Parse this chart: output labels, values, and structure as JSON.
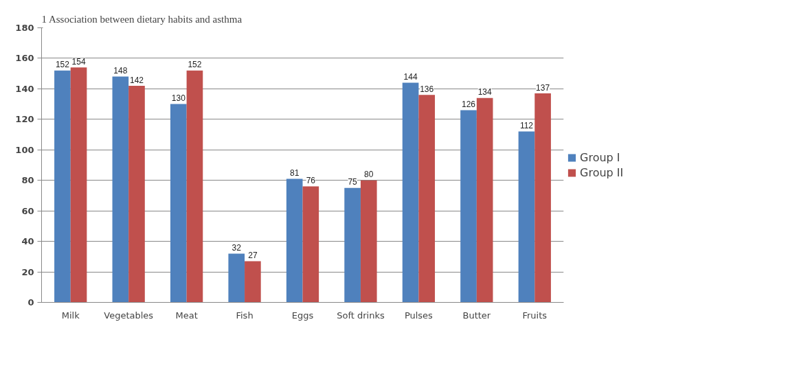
{
  "chart_data": {
    "type": "bar",
    "title": "1 Association between dietary habits and asthma",
    "categories": [
      "Milk",
      "Vegetables",
      "Meat",
      "Fish",
      "Eggs",
      "Soft drinks",
      "Pulses",
      "Butter",
      "Fruits"
    ],
    "series": [
      {
        "name": "Group I",
        "color": "#4f81bd",
        "values": [
          152,
          148,
          130,
          32,
          81,
          75,
          144,
          126,
          112
        ]
      },
      {
        "name": "Group II",
        "color": "#c0504d",
        "values": [
          154,
          142,
          152,
          27,
          76,
          80,
          136,
          134,
          137
        ]
      }
    ],
    "ylim": [
      0,
      180
    ],
    "yticks": [
      0,
      20,
      40,
      60,
      80,
      100,
      120,
      140,
      160,
      180
    ],
    "grid": "y",
    "legend": "right",
    "data_labels": true
  }
}
